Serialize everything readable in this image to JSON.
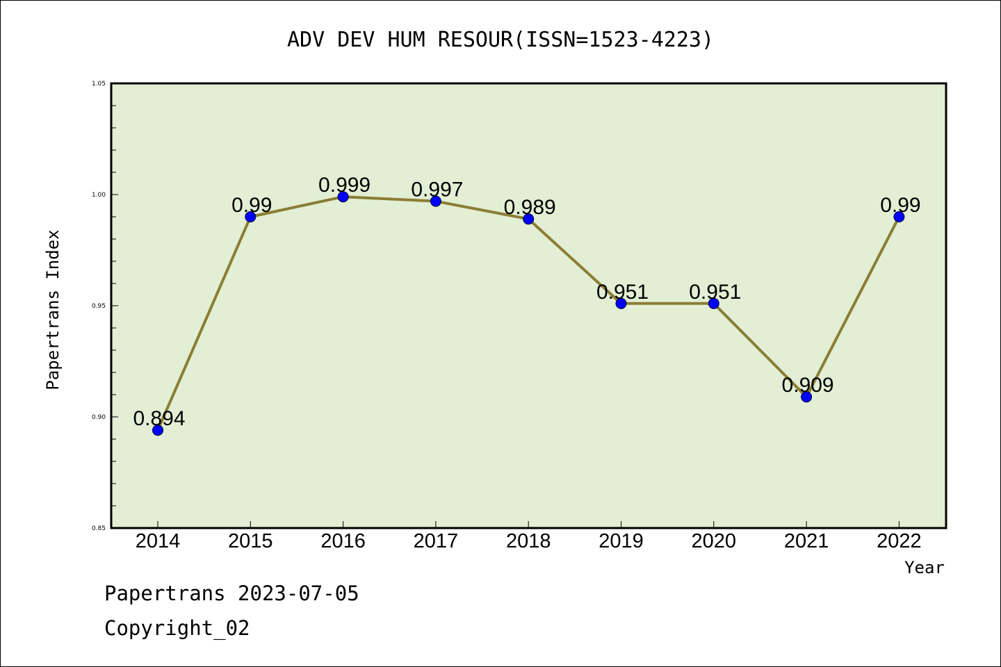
{
  "chart_data": {
    "type": "line",
    "title": "ADV DEV HUM RESOUR(ISSN=1523-4223)",
    "xlabel": "Year",
    "ylabel": "Papertrans Index",
    "categories": [
      "2014",
      "2015",
      "2016",
      "2017",
      "2018",
      "2019",
      "2020",
      "2021",
      "2022"
    ],
    "series": [
      {
        "values": [
          0.894,
          0.99,
          0.999,
          0.997,
          0.989,
          0.951,
          0.951,
          0.909,
          0.99
        ],
        "data_labels": [
          "0.894",
          "0.99",
          "0.999",
          "0.997",
          "0.989",
          "0.951",
          "0.951",
          "0.909",
          "0.99"
        ]
      }
    ],
    "ylim": [
      0.85,
      1.05
    ],
    "y_ticks": [
      "0.85",
      "0.90",
      "0.95",
      "1.00",
      "1.05"
    ],
    "grid": false,
    "colors": {
      "plot_background": "#e2efd4",
      "line": "#8b7d35",
      "marker": "#0000ff"
    }
  },
  "footer": {
    "line1": "Papertrans 2023-07-05",
    "line2": "Copyright_02"
  }
}
